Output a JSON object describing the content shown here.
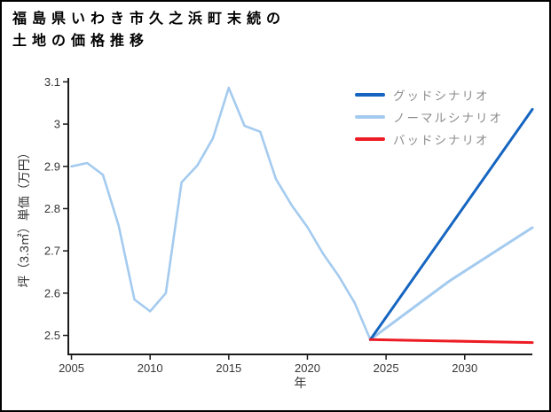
{
  "title": {
    "line1": "福島県いわき市久之浜町末続の",
    "line2": "土地の価格推移"
  },
  "chart_data": {
    "type": "line",
    "title": "福島県いわき市久之浜町末続の土地の価格推移",
    "xlabel": "年",
    "ylabel": "坪（3.3㎡）単価（万円）",
    "xlim": [
      2004.8,
      2034.3
    ],
    "ylim": [
      2.455,
      3.105
    ],
    "x_ticks": [
      2005,
      2010,
      2015,
      2020,
      2025,
      2030
    ],
    "y_ticks": [
      2.5,
      2.6,
      2.7,
      2.8,
      2.9,
      3,
      3.1
    ],
    "y_tick_labels": [
      "2.5",
      "2.6",
      "2.7",
      "2.8",
      "2.9",
      "3",
      "3.1"
    ],
    "grid": false,
    "legend_position": "top-right",
    "colors": {
      "good": "#1565c0",
      "normal": "#a4cbef",
      "bad": "#ed1c24",
      "axis": "#1a1a1a",
      "tick_text": "#363636",
      "legend_text": "#8c8c8c"
    },
    "legend": [
      {
        "id": "good",
        "label": "グッドシナリオ",
        "color": "#1565c0"
      },
      {
        "id": "normal",
        "label": "ノーマルシナリオ",
        "color": "#a4cbef"
      },
      {
        "id": "bad",
        "label": "バッドシナリオ",
        "color": "#ed1c24"
      }
    ],
    "series": [
      {
        "id": "history",
        "name": "ノーマルシナリオ",
        "color": "#a4cbef",
        "width": 2.6,
        "x": [
          2005,
          2006,
          2007,
          2008,
          2009,
          2010,
          2011,
          2012,
          2013,
          2014,
          2015,
          2016,
          2017,
          2018,
          2019,
          2020,
          2021,
          2022,
          2023,
          2024
        ],
        "values": [
          2.9,
          2.908,
          2.88,
          2.76,
          2.585,
          2.557,
          2.6,
          2.862,
          2.902,
          2.967,
          3.086,
          2.996,
          2.982,
          2.87,
          2.808,
          2.756,
          2.693,
          2.64,
          2.577,
          2.49
        ]
      },
      {
        "id": "normal",
        "name": "ノーマルシナリオ",
        "color": "#a4cbef",
        "width": 3,
        "x": [
          2024,
          2029,
          2034.3
        ],
        "values": [
          2.49,
          2.628,
          2.755
        ]
      },
      {
        "id": "good",
        "name": "グッドシナリオ",
        "color": "#1565c0",
        "width": 3,
        "x": [
          2024,
          2034.3
        ],
        "values": [
          2.49,
          3.035
        ]
      },
      {
        "id": "bad",
        "name": "バッドシナリオ",
        "color": "#ed1c24",
        "width": 3,
        "x": [
          2024,
          2034.3
        ],
        "values": [
          2.49,
          2.483
        ]
      }
    ]
  }
}
